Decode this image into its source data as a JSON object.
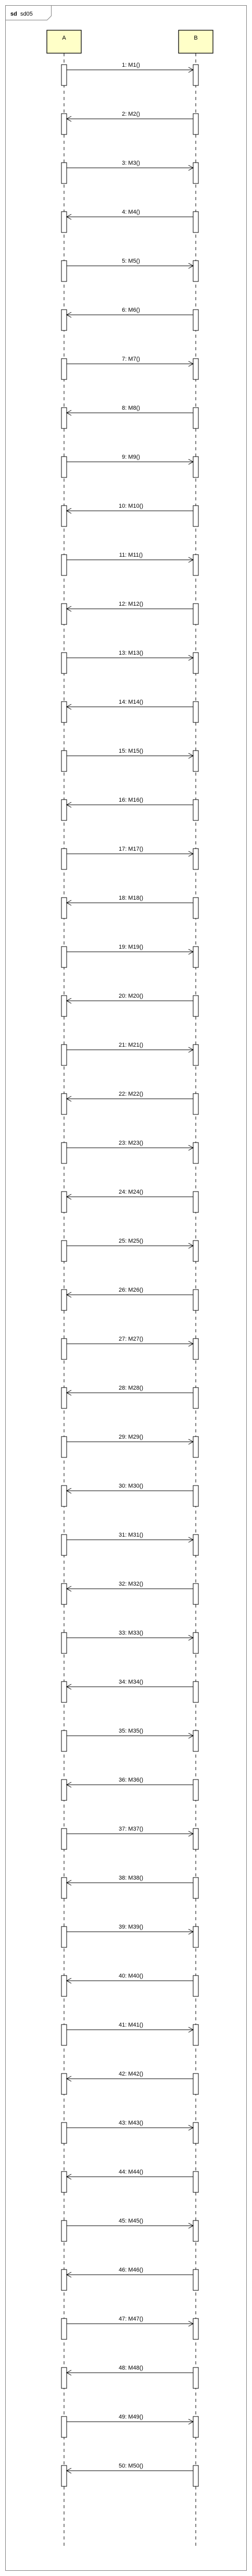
{
  "diagram": {
    "type": "sequence",
    "frame": {
      "keyword": "sd",
      "name": "sd05"
    },
    "colors": {
      "participant_fill": "#ffffc8",
      "line": "#000000",
      "frame_border": "#808080"
    },
    "participants": [
      {
        "id": "A",
        "label": "A"
      },
      {
        "id": "B",
        "label": "B"
      }
    ],
    "messages": [
      {
        "from": "A",
        "to": "B",
        "label": "1: M1()"
      },
      {
        "from": "B",
        "to": "A",
        "label": "2: M2()"
      },
      {
        "from": "A",
        "to": "B",
        "label": "3: M3()"
      },
      {
        "from": "B",
        "to": "A",
        "label": "4: M4()"
      },
      {
        "from": "A",
        "to": "B",
        "label": "5: M5()"
      },
      {
        "from": "B",
        "to": "A",
        "label": "6: M6()"
      },
      {
        "from": "A",
        "to": "B",
        "label": "7: M7()"
      },
      {
        "from": "B",
        "to": "A",
        "label": "8: M8()"
      },
      {
        "from": "A",
        "to": "B",
        "label": "9: M9()"
      },
      {
        "from": "B",
        "to": "A",
        "label": "10: M10()"
      },
      {
        "from": "A",
        "to": "B",
        "label": "11: M11()"
      },
      {
        "from": "B",
        "to": "A",
        "label": "12: M12()"
      },
      {
        "from": "A",
        "to": "B",
        "label": "13: M13()"
      },
      {
        "from": "B",
        "to": "A",
        "label": "14: M14()"
      },
      {
        "from": "A",
        "to": "B",
        "label": "15: M15()"
      },
      {
        "from": "B",
        "to": "A",
        "label": "16: M16()"
      },
      {
        "from": "A",
        "to": "B",
        "label": "17: M17()"
      },
      {
        "from": "B",
        "to": "A",
        "label": "18: M18()"
      },
      {
        "from": "A",
        "to": "B",
        "label": "19: M19()"
      },
      {
        "from": "B",
        "to": "A",
        "label": "20: M20()"
      },
      {
        "from": "A",
        "to": "B",
        "label": "21: M21()"
      },
      {
        "from": "B",
        "to": "A",
        "label": "22: M22()"
      },
      {
        "from": "A",
        "to": "B",
        "label": "23: M23()"
      },
      {
        "from": "B",
        "to": "A",
        "label": "24: M24()"
      },
      {
        "from": "A",
        "to": "B",
        "label": "25: M25()"
      },
      {
        "from": "B",
        "to": "A",
        "label": "26: M26()"
      },
      {
        "from": "A",
        "to": "B",
        "label": "27: M27()"
      },
      {
        "from": "B",
        "to": "A",
        "label": "28: M28()"
      },
      {
        "from": "A",
        "to": "B",
        "label": "29: M29()"
      },
      {
        "from": "B",
        "to": "A",
        "label": "30: M30()"
      },
      {
        "from": "A",
        "to": "B",
        "label": "31: M31()"
      },
      {
        "from": "B",
        "to": "A",
        "label": "32: M32()"
      },
      {
        "from": "A",
        "to": "B",
        "label": "33: M33()"
      },
      {
        "from": "B",
        "to": "A",
        "label": "34: M34()"
      },
      {
        "from": "A",
        "to": "B",
        "label": "35: M35()"
      },
      {
        "from": "B",
        "to": "A",
        "label": "36: M36()"
      },
      {
        "from": "A",
        "to": "B",
        "label": "37: M37()"
      },
      {
        "from": "B",
        "to": "A",
        "label": "38: M38()"
      },
      {
        "from": "A",
        "to": "B",
        "label": "39: M39()"
      },
      {
        "from": "B",
        "to": "A",
        "label": "40: M40()"
      },
      {
        "from": "A",
        "to": "B",
        "label": "41: M41()"
      },
      {
        "from": "B",
        "to": "A",
        "label": "42: M42()"
      },
      {
        "from": "A",
        "to": "B",
        "label": "43: M43()"
      },
      {
        "from": "B",
        "to": "A",
        "label": "44: M44()"
      },
      {
        "from": "A",
        "to": "B",
        "label": "45: M45()"
      },
      {
        "from": "B",
        "to": "A",
        "label": "46: M46()"
      },
      {
        "from": "A",
        "to": "B",
        "label": "47: M47()"
      },
      {
        "from": "B",
        "to": "A",
        "label": "48: M48()"
      },
      {
        "from": "A",
        "to": "B",
        "label": "49: M49()"
      },
      {
        "from": "B",
        "to": "A",
        "label": "50: M50()"
      }
    ]
  }
}
